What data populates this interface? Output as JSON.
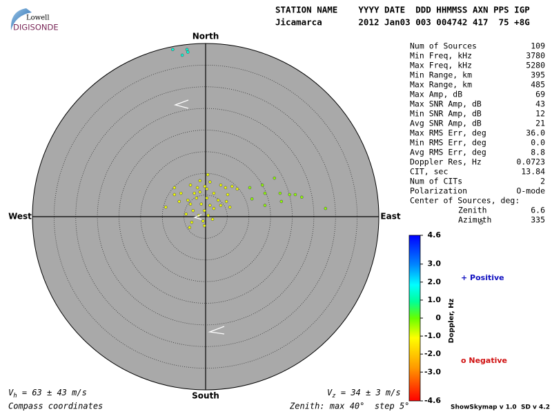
{
  "logo": {
    "top": "Lowell",
    "bottom": "DIGISONDE"
  },
  "header": {
    "line1": "STATION NAME    YYYY DATE  DDD HHMMSS AXN PPS IGP",
    "line2": "Jicamarca       2012 Jan03 003 004742 417  75 +8G"
  },
  "chart_data": {
    "type": "skymap",
    "directions": {
      "north": "North",
      "south": "South",
      "east": "East",
      "west": "West"
    },
    "xlim": [
      -40,
      40
    ],
    "ylim": [
      -40,
      40
    ],
    "rings": [
      5,
      10,
      15,
      20,
      25,
      30,
      35
    ],
    "x": [
      0.5,
      -1.3,
      1.0,
      -3.5,
      -0.2,
      3.5,
      4.6,
      -7.2,
      -1.9,
      0.3,
      6.1,
      7.3,
      -5.7,
      -2.6,
      -1.3,
      1.9,
      5.1,
      -7.2,
      -4.1,
      -2.1,
      0.3,
      2.9,
      4.8,
      -9.2,
      -6.1,
      -3.5,
      -1.0,
      1.0,
      3.5,
      5.6,
      -2.9,
      -0.3,
      1.9,
      -4.5,
      -1.6,
      0.6,
      -3.2,
      -0.6,
      1.6,
      -3.7,
      -0.3,
      13.1,
      15.9,
      13.7,
      17.2,
      19.4,
      20.7,
      22.2,
      13.7,
      17.5,
      27.7,
      10.2,
      10.7,
      -7.6,
      -4.3,
      -5.4,
      -4.1
    ],
    "y": [
      9.7,
      8.3,
      8.0,
      7.3,
      7.0,
      7.3,
      6.7,
      6.7,
      6.7,
      6.4,
      7.0,
      6.4,
      5.4,
      5.4,
      5.7,
      5.4,
      5.1,
      5.1,
      3.8,
      4.3,
      4.3,
      3.8,
      3.5,
      2.2,
      3.5,
      2.9,
      2.9,
      2.6,
      2.6,
      2.2,
      1.4,
      1.4,
      1.9,
      0.6,
      0.3,
      0.3,
      -1.3,
      -1.0,
      -0.6,
      -2.5,
      -2.1,
      7.3,
      8.9,
      5.4,
      5.4,
      5.1,
      5.1,
      4.5,
      2.6,
      3.5,
      1.9,
      6.7,
      4.1,
      38.6,
      38.6,
      37.3,
      38.0
    ],
    "doppler": [
      -1.0,
      -1.0,
      -1.0,
      -1.0,
      -1.0,
      -1.0,
      -1.0,
      -1.0,
      -1.0,
      -1.0,
      -1.0,
      -1.0,
      -1.0,
      -1.0,
      -1.0,
      -1.0,
      -1.0,
      -1.0,
      -1.0,
      -1.0,
      -1.0,
      -1.0,
      -1.0,
      -1.0,
      -1.0,
      -1.0,
      -1.0,
      -1.0,
      -1.0,
      -1.0,
      -1.0,
      -1.0,
      -1.0,
      -1.0,
      -1.0,
      -1.0,
      -1.0,
      -1.0,
      -1.0,
      -1.0,
      -1.0,
      -0.3,
      -0.3,
      -0.3,
      -0.3,
      -0.3,
      -0.3,
      -0.3,
      -0.3,
      -0.3,
      -0.3,
      -0.3,
      -0.3,
      1.5,
      1.5,
      1.5,
      1.5
    ],
    "colorbar": {
      "label": "Doppler, Hz",
      "lim": [
        -4.6,
        4.6
      ],
      "ticks": [
        4.6,
        {
          "value": 3,
          "label": "3.0"
        },
        {
          "value": 2,
          "label": "2.0"
        },
        {
          "value": 1,
          "label": "1.0"
        },
        0,
        {
          "value": -1,
          "label": "-1.0"
        },
        {
          "value": -2,
          "label": "-2.0"
        },
        {
          "value": -3,
          "label": "-3.0"
        },
        -4.6
      ]
    },
    "legend": {
      "positive": "+ Positive",
      "negative": "o Negative"
    }
  },
  "stats": {
    "rows": [
      [
        "Num of Sources",
        "109"
      ],
      [
        "Min Freq, kHz",
        "3780"
      ],
      [
        "Max Freq, kHz",
        "5280"
      ],
      [
        "Min Range, km",
        "395"
      ],
      [
        "Max Range, km",
        "485"
      ],
      [
        "Max Amp, dB",
        "69"
      ],
      [
        "Max SNR Amp, dB",
        "43"
      ],
      [
        "Min SNR Amp, dB",
        "12"
      ],
      [
        "Avg SNR Amp, dB",
        "21"
      ],
      [
        "Max RMS Err, deg",
        "36.0"
      ],
      [
        "Min RMS Err, deg",
        "0.0"
      ],
      [
        "Avg RMS Err, deg",
        "8.8"
      ],
      [
        "Doppler Res, Hz",
        "0.0723"
      ],
      [
        "CIT, sec",
        "13.84"
      ],
      [
        "Num of CITs",
        "2"
      ],
      [
        "Polarization",
        "O-mode"
      ]
    ],
    "center_label": "Center of Sources, deg:",
    "center_rows": [
      [
        "Zenith",
        "6.6"
      ],
      [
        "Azimuth",
        "335"
      ]
    ]
  },
  "footer": {
    "vh": {
      "symbol": "V",
      "sub": "h",
      "text": " = 63 ± 43 m/s"
    },
    "vz": {
      "symbol": "V",
      "sub": "z",
      "text": " = 34 ± 3 m/s"
    },
    "coords": "Compass coordinates",
    "zenith": "Zenith: max 40°  step 5°",
    "version": "ShowSkymap v 1.0  SD v 4.2"
  }
}
